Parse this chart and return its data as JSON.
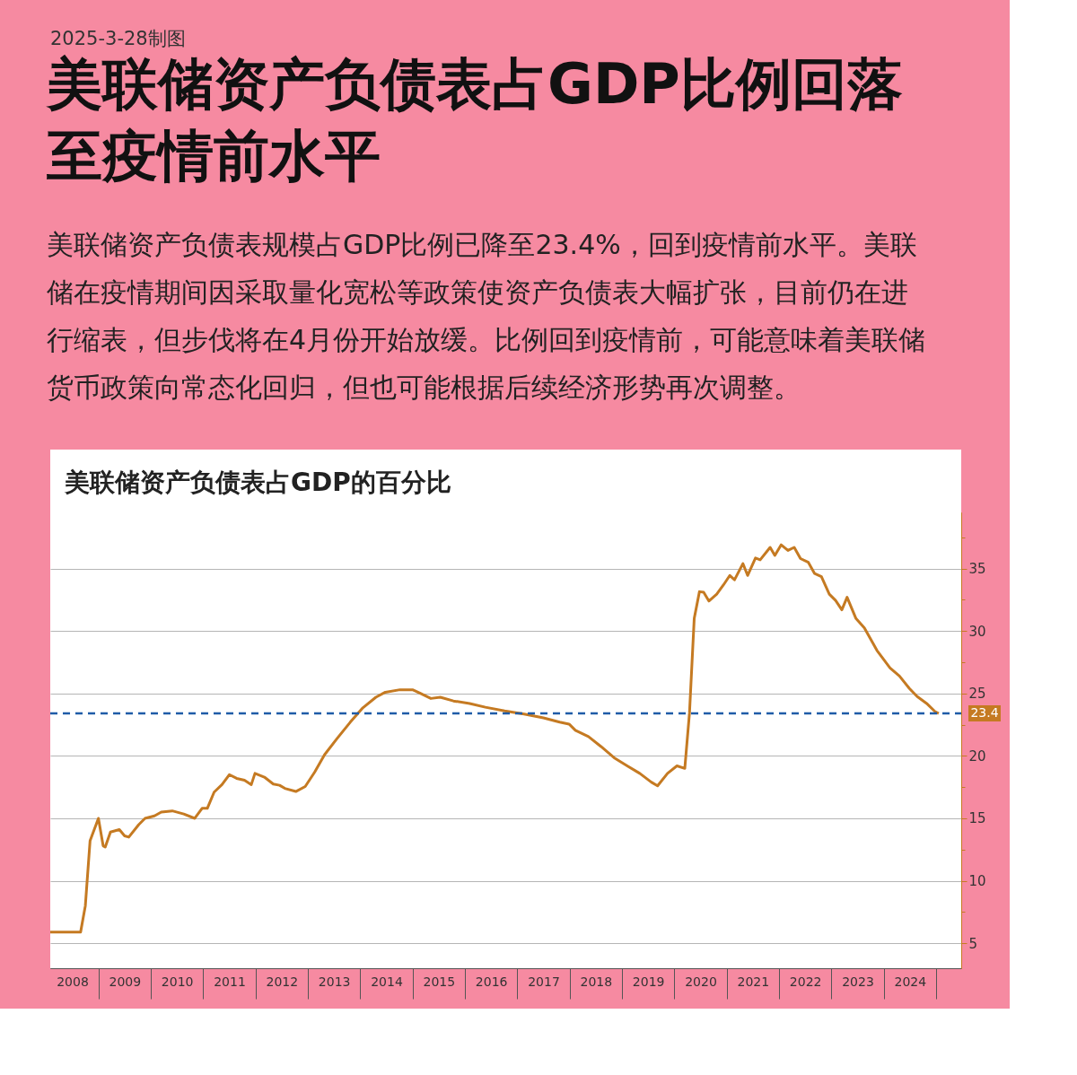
{
  "chart_data": {
    "type": "line",
    "title": "美联储资产负债表占GDP比例回落至疫情前水平",
    "subtitle": "美联储资产负债表规模占GDP比例已降至23.4%，回到疫情前水平。美联储在疫情期间因采取量化宽松等政策使资产负债表大幅扩张，目前仍在进行缩表，但步伐将在4月份开始放缓。比例回到疫情前，可能意味着美联储货币政策向常态化回归，但也可能根据后续经济形势再次调整。",
    "annotations": [
      "2025-3-28制图",
      "美联储资产负债表占GDP的百分比"
    ],
    "series": [
      {
        "color": "#c57a22",
        "line_style": "solid",
        "marker": "none",
        "x": [
          2008.08,
          2008.66,
          2008.75,
          2008.84,
          2009.0,
          2009.09,
          2009.13,
          2009.23,
          2009.4,
          2009.5,
          2009.58,
          2009.77,
          2009.89,
          2010.07,
          2010.2,
          2010.41,
          2010.63,
          2010.84,
          2010.98,
          2011.08,
          2011.21,
          2011.36,
          2011.5,
          2011.64,
          2011.79,
          2011.92,
          2011.99,
          2012.17,
          2012.34,
          2012.46,
          2012.56,
          2012.77,
          2012.95,
          2013.13,
          2013.32,
          2013.56,
          2013.81,
          2014.05,
          2014.3,
          2014.48,
          2014.76,
          2015.0,
          2015.13,
          2015.35,
          2015.53,
          2015.78,
          2016.09,
          2016.39,
          2016.76,
          2017.13,
          2017.5,
          2017.81,
          2017.99,
          2018.11,
          2018.36,
          2018.6,
          2018.85,
          2019.1,
          2019.34,
          2019.56,
          2019.68,
          2019.87,
          2020.05,
          2020.2,
          2020.29,
          2020.38,
          2020.48,
          2020.56,
          2020.66,
          2020.81,
          2020.94,
          2021.06,
          2021.15,
          2021.31,
          2021.4,
          2021.55,
          2021.64,
          2021.83,
          2021.92,
          2022.04,
          2022.17,
          2022.29,
          2022.41,
          2022.56,
          2022.68,
          2022.81,
          2022.96,
          2023.08,
          2023.2,
          2023.3,
          2023.47,
          2023.63,
          2023.87,
          2024.12,
          2024.3,
          2024.49,
          2024.64,
          2024.82,
          2024.98,
          2025.05
        ],
        "values": [
          5.9,
          5.9,
          8.0,
          13.2,
          15.0,
          12.8,
          12.7,
          13.9,
          14.1,
          13.6,
          13.5,
          14.5,
          15.0,
          15.2,
          15.5,
          15.6,
          15.35,
          15.0,
          15.8,
          15.8,
          17.1,
          17.7,
          18.5,
          18.2,
          18.05,
          17.7,
          18.6,
          18.3,
          17.75,
          17.65,
          17.4,
          17.15,
          17.55,
          18.7,
          20.1,
          21.4,
          22.7,
          23.85,
          24.7,
          25.1,
          25.3,
          25.3,
          25.05,
          24.6,
          24.7,
          24.4,
          24.2,
          23.9,
          23.6,
          23.35,
          23.05,
          22.7,
          22.55,
          22.05,
          21.55,
          20.75,
          19.85,
          19.2,
          18.6,
          17.9,
          17.6,
          18.6,
          19.2,
          19.0,
          23.45,
          31.0,
          33.15,
          33.1,
          32.4,
          32.95,
          33.7,
          34.45,
          34.1,
          35.4,
          34.45,
          35.85,
          35.7,
          36.7,
          36.05,
          36.9,
          36.45,
          36.7,
          35.8,
          35.5,
          34.6,
          34.35,
          32.95,
          32.45,
          31.7,
          32.7,
          31.0,
          30.25,
          28.45,
          27.05,
          26.4,
          25.4,
          24.75,
          24.2,
          23.55,
          23.4
        ]
      }
    ],
    "xlim": [
      2008.08,
      2025.48
    ],
    "xticks": [
      {
        "value": 2008.5,
        "label": "2008"
      },
      {
        "value": 2009.5,
        "label": "2009"
      },
      {
        "value": 2010.5,
        "label": "2010"
      },
      {
        "value": 2011.5,
        "label": "2011"
      },
      {
        "value": 2012.5,
        "label": "2012"
      },
      {
        "value": 2013.5,
        "label": "2013"
      },
      {
        "value": 2014.5,
        "label": "2014"
      },
      {
        "value": 2015.5,
        "label": "2015"
      },
      {
        "value": 2016.5,
        "label": "2016"
      },
      {
        "value": 2017.5,
        "label": "2017"
      },
      {
        "value": 2018.5,
        "label": "2018"
      },
      {
        "value": 2019.5,
        "label": "2019"
      },
      {
        "value": 2020.5,
        "label": "2020"
      },
      {
        "value": 2021.5,
        "label": "2021"
      },
      {
        "value": 2022.5,
        "label": "2022"
      },
      {
        "value": 2023.5,
        "label": "2023"
      },
      {
        "value": 2024.5,
        "label": "2024"
      }
    ],
    "ylim": [
      3,
      39.5
    ],
    "yticks": [
      5,
      {
        "value": 7.5,
        "label": null
      },
      10,
      {
        "value": 12.5,
        "label": null
      },
      15,
      {
        "value": 17.5,
        "label": null
      },
      20,
      {
        "value": 22.5,
        "label": null
      },
      25,
      {
        "value": 27.5,
        "label": null
      },
      30,
      {
        "value": 32.5,
        "label": null
      },
      35,
      {
        "value": 37.5,
        "label": null
      }
    ],
    "grid": "y",
    "ref_lines": [
      {
        "axis": "y",
        "value": 23.4,
        "label": "23.4",
        "color": "#1f5ca8",
        "line_style": "dashed"
      }
    ]
  }
}
